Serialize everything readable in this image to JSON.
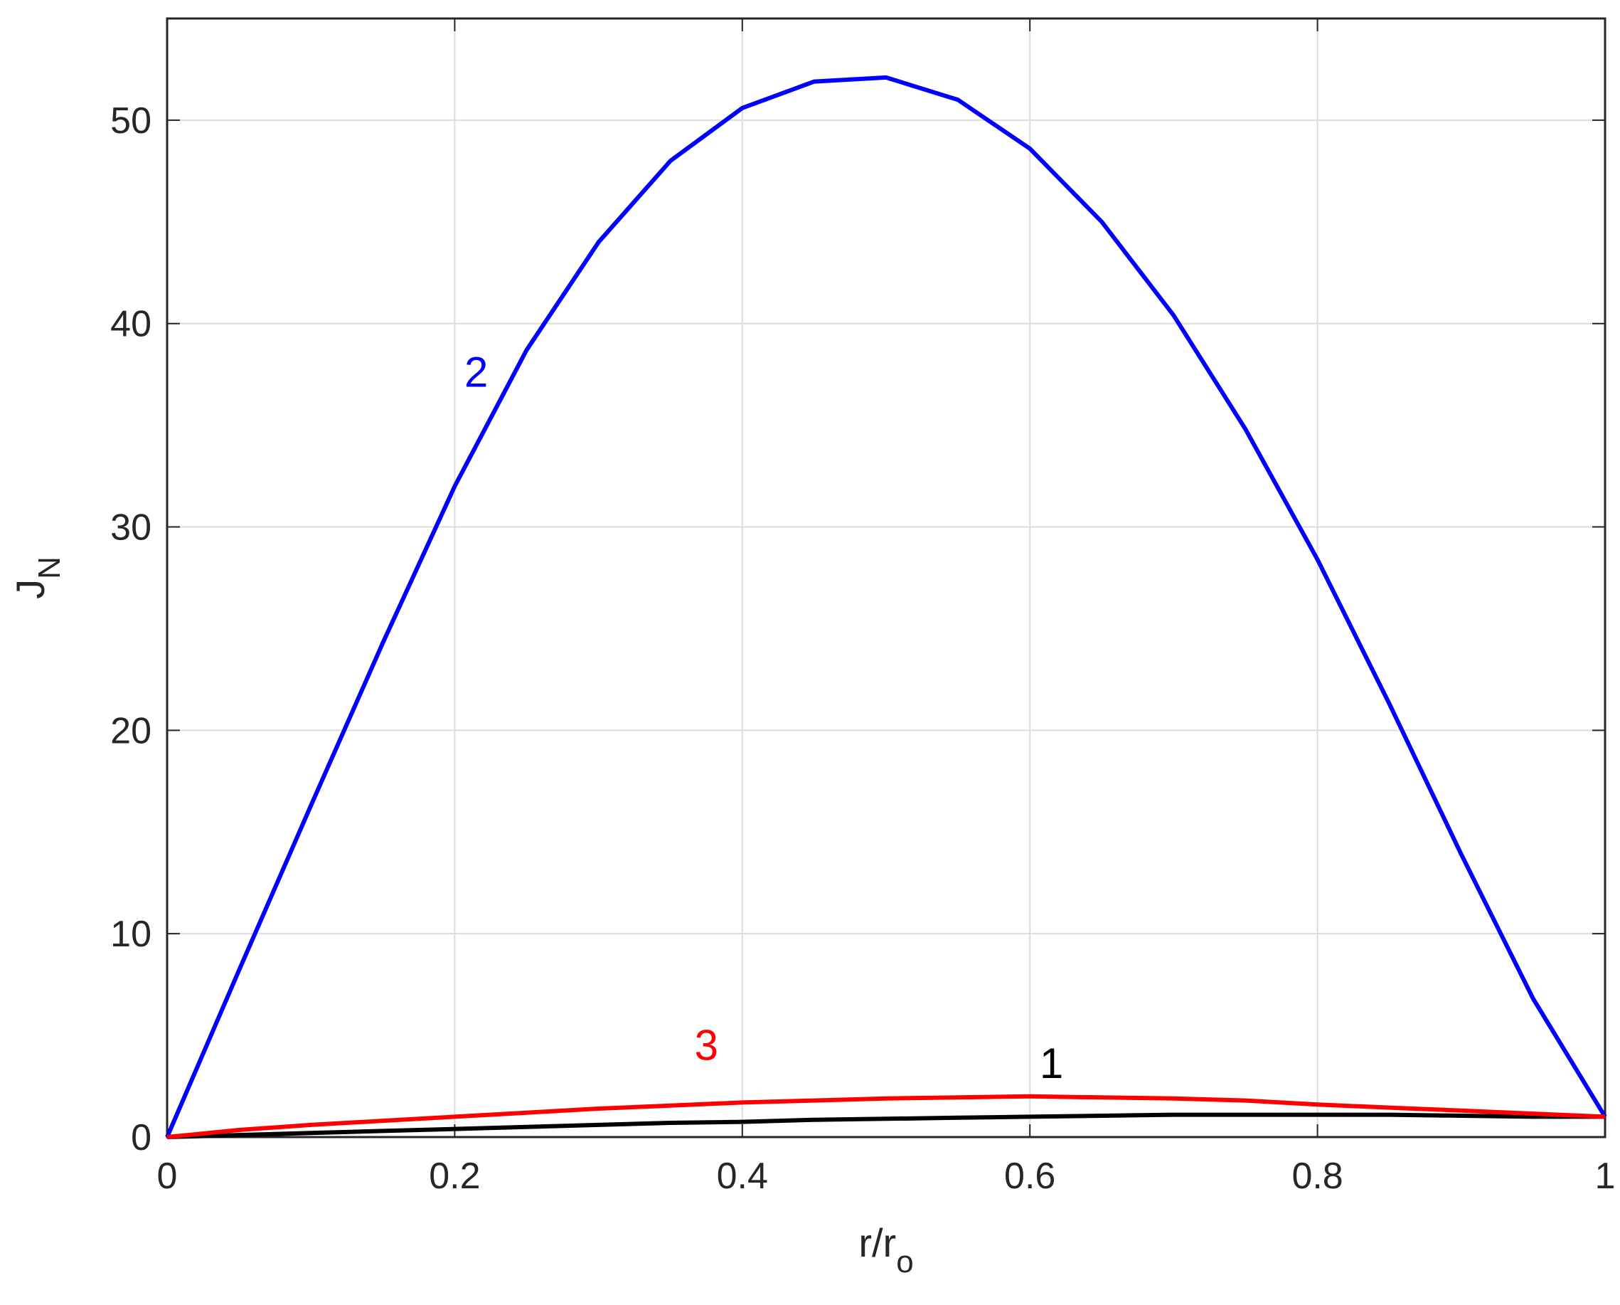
{
  "chart_data": {
    "type": "line",
    "xlabel": {
      "text": "r/r",
      "sub": "o"
    },
    "ylabel": {
      "text": "J",
      "sub": "N"
    },
    "x": [
      0,
      0.05,
      0.1,
      0.15,
      0.2,
      0.25,
      0.3,
      0.35,
      0.4,
      0.45,
      0.5,
      0.55,
      0.6,
      0.65,
      0.7,
      0.75,
      0.8,
      0.85,
      0.9,
      0.95,
      1
    ],
    "series": [
      {
        "color": "#000000",
        "values": [
          0,
          0.1,
          0.2,
          0.3,
          0.4,
          0.5,
          0.6,
          0.7,
          0.75,
          0.85,
          0.9,
          0.95,
          1.0,
          1.05,
          1.1,
          1.1,
          1.1,
          1.1,
          1.05,
          1.0,
          1.0
        ]
      },
      {
        "color": "#0000ff",
        "values": [
          0,
          8.2,
          16.3,
          24.3,
          32,
          38.7,
          44,
          48,
          50.6,
          51.9,
          52.1,
          51,
          48.6,
          45,
          40.4,
          34.8,
          28.4,
          21.3,
          13.9,
          6.8,
          1
        ]
      },
      {
        "color": "#ff0000",
        "values": [
          0,
          0.35,
          0.6,
          0.8,
          1.0,
          1.2,
          1.4,
          1.55,
          1.7,
          1.8,
          1.9,
          1.95,
          2.0,
          1.95,
          1.9,
          1.8,
          1.6,
          1.45,
          1.3,
          1.15,
          1.0
        ]
      }
    ],
    "annotations": [
      {
        "text": "1",
        "x": 0.615,
        "y": 2.9,
        "color": "#000000"
      },
      {
        "text": "2",
        "x": 0.215,
        "y": 36.9,
        "color": "#0000ff"
      },
      {
        "text": "3",
        "x": 0.375,
        "y": 3.8,
        "color": "#ff0000"
      }
    ],
    "xlim": [
      0,
      1
    ],
    "xticks": [
      0,
      0.2,
      0.4,
      0.6,
      0.8,
      1
    ],
    "ylim": [
      0,
      55
    ],
    "yticks": [
      0,
      10,
      20,
      30,
      40,
      50
    ],
    "grid": true
  }
}
